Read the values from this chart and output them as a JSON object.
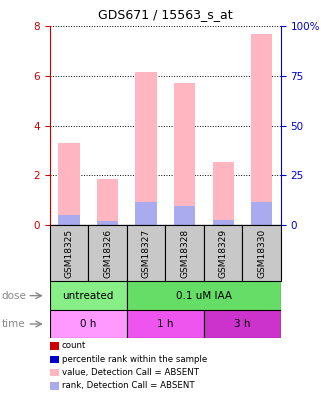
{
  "title": "GDS671 / 15563_s_at",
  "samples": [
    "GSM18325",
    "GSM18326",
    "GSM18327",
    "GSM18328",
    "GSM18329",
    "GSM18330"
  ],
  "bar_values_pink": [
    3.3,
    1.85,
    6.15,
    5.7,
    2.55,
    7.7
  ],
  "bar_values_blue": [
    0.4,
    0.15,
    0.9,
    0.75,
    0.2,
    0.9
  ],
  "ylim_left": [
    0,
    8
  ],
  "ylim_right": [
    0,
    100
  ],
  "yticks_left": [
    0,
    2,
    4,
    6,
    8
  ],
  "yticks_right": [
    0,
    25,
    50,
    75,
    100
  ],
  "ytick_labels_right": [
    "0",
    "25",
    "50",
    "75",
    "100%"
  ],
  "bar_color_pink": "#FFB6C1",
  "bar_color_blue": "#AAAAEE",
  "bar_width": 0.55,
  "sample_bg_color": "#C8C8C8",
  "dose_color_untreated": "#88EE88",
  "dose_color_treated": "#66DD66",
  "time_color_0h": "#FF99FF",
  "time_color_1h": "#EE55EE",
  "time_color_3h": "#CC33CC",
  "legend_items": [
    {
      "color": "#CC0000",
      "label": "count"
    },
    {
      "color": "#0000CC",
      "label": "percentile rank within the sample"
    },
    {
      "color": "#FFB6C1",
      "label": "value, Detection Call = ABSENT"
    },
    {
      "color": "#AAAAEE",
      "label": "rank, Detection Call = ABSENT"
    }
  ],
  "left_axis_color": "#CC0000",
  "right_axis_color": "#0000CC"
}
